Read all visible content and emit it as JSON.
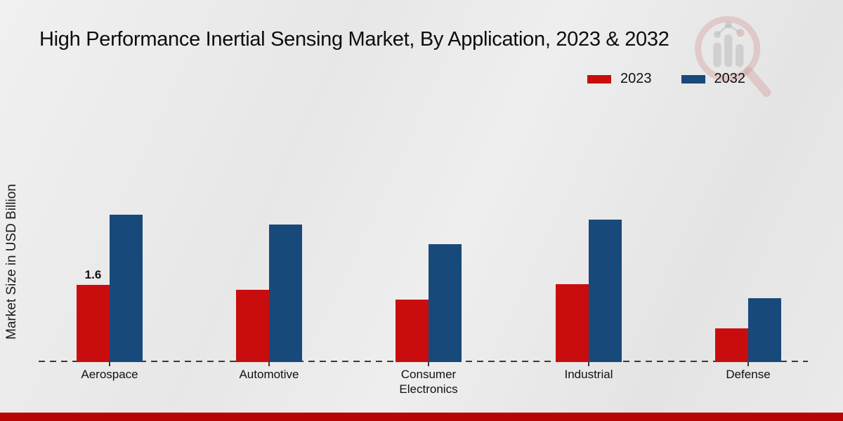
{
  "title": "High Performance Inertial Sensing Market, By Application, 2023 & 2032",
  "y_axis_label": "Market Size in USD Billion",
  "legend": [
    {
      "label": "2023",
      "color": "#c90d0e"
    },
    {
      "label": "2032",
      "color": "#17497b"
    }
  ],
  "colors": {
    "bar_2023": "#c90d0e",
    "bar_2032": "#17497b",
    "bottom_band": "#b80404",
    "baseline": "#3a3a3a",
    "background": "#e9e9e9"
  },
  "chart_data": {
    "type": "bar",
    "title": "High Performance Inertial Sensing Market, By Application, 2023 & 2032",
    "categories": [
      "Aerospace",
      "Automotive",
      "Consumer Electronics",
      "Industrial",
      "Defense"
    ],
    "series": [
      {
        "name": "2023",
        "color": "#c90d0e",
        "values": [
          1.6,
          1.5,
          1.3,
          1.62,
          0.7
        ]
      },
      {
        "name": "2032",
        "color": "#17497b",
        "values": [
          3.05,
          2.85,
          2.45,
          2.95,
          1.32
        ]
      }
    ],
    "xlabel": "",
    "ylabel": "Market Size in USD Billion",
    "ylim": [
      0,
      3.4
    ],
    "grid": false,
    "legend_position": "top-right",
    "baseline_style": "dashed",
    "bar_label": {
      "text": "1.6",
      "category": "Aerospace",
      "series": "2023"
    }
  }
}
